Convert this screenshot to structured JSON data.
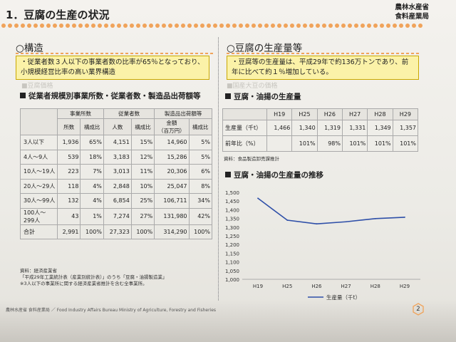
{
  "page": {
    "title": "1．豆腐の生産の状況",
    "ministry_line1": "農林水産省",
    "ministry_line2": "食料産業局",
    "footer": "農林水産省 食料産業局 ／ Food Industry Affairs Bureau    Ministry of Agriculture, Forestry and Fisheries",
    "page_number": "2"
  },
  "left": {
    "heading": "○構造",
    "note": "・従業者数３人以下の事業者数の比率が65％となっており、小規模経営比率の高い業界構造",
    "ghost_text": "■豆腐価格",
    "table_title": "従業者規模別事業所数・従業者数・製造品出荷額等",
    "table": {
      "group_headers": [
        "事業所数",
        "従業者数",
        "製造品出荷額等"
      ],
      "sub_headers": [
        "所数",
        "構成比",
        "人数",
        "構成比",
        "金額\n（百万円）",
        "構成比"
      ],
      "rows": [
        {
          "label": "3人以下",
          "values": [
            "1,936",
            "65%",
            "4,151",
            "15%",
            "14,960",
            "5%"
          ]
        },
        {
          "label": "4人～9人",
          "values": [
            "539",
            "18%",
            "3,183",
            "12%",
            "15,286",
            "5%"
          ]
        },
        {
          "label": "10人～19人",
          "values": [
            "223",
            "7%",
            "3,013",
            "11%",
            "20,306",
            "6%"
          ]
        },
        {
          "label": "20人～29人",
          "values": [
            "118",
            "4%",
            "2,848",
            "10%",
            "25,047",
            "8%"
          ]
        },
        {
          "label": "30人～99人",
          "values": [
            "132",
            "4%",
            "6,854",
            "25%",
            "106,711",
            "34%"
          ]
        },
        {
          "label": "100人～299人",
          "values": [
            "43",
            "1%",
            "7,274",
            "27%",
            "131,980",
            "42%"
          ]
        },
        {
          "label": "合計",
          "values": [
            "2,991",
            "100%",
            "27,323",
            "100%",
            "314,290",
            "100%"
          ]
        }
      ]
    },
    "source_lines": [
      "資料：経済産業省",
      "「平成29年工業統計表（産業別統計表）」のうち「豆腐・油揚製造業」",
      "※3人以下の事業所に関する経済産業省推計を含む全事業所。"
    ]
  },
  "right": {
    "heading": "○豆腐の生産量等",
    "note": "・豆腐等の生産量は、平成29年で約136万トンであり、前年に比べて約１％増加している。",
    "ghost_text": "■国産大豆の価格",
    "table_title": "豆腐・油揚の生産量",
    "table": {
      "headers": [
        "",
        "H19",
        "H25",
        "H26",
        "H27",
        "H28",
        "H29"
      ],
      "rows": [
        {
          "label": "生産量（千t）",
          "values": [
            "1,466",
            "1,340",
            "1,319",
            "1,331",
            "1,349",
            "1,357"
          ]
        },
        {
          "label": "前年比（%）",
          "values": [
            "",
            "101%",
            "98%",
            "101%",
            "101%",
            "101%"
          ]
        }
      ]
    },
    "source": "資料：食品製造卸売課推計",
    "chart_title": "豆腐・油揚の生産量の推移"
  },
  "chart_data": {
    "type": "line",
    "title": "豆腐・油揚の生産量の推移",
    "categories": [
      "H19",
      "H25",
      "H26",
      "H27",
      "H28",
      "H29"
    ],
    "series": [
      {
        "name": "生産量（千t）",
        "values": [
          1466,
          1340,
          1319,
          1331,
          1349,
          1357
        ],
        "color": "#2e4fa8"
      }
    ],
    "ylim": [
      1000,
      1500
    ],
    "yticks": [
      "1,500",
      "1,450",
      "1,400",
      "1,350",
      "1,300",
      "1,250",
      "1,200",
      "1,150",
      "1,100",
      "1,050",
      "1,000"
    ],
    "legend_position": "bottom"
  }
}
